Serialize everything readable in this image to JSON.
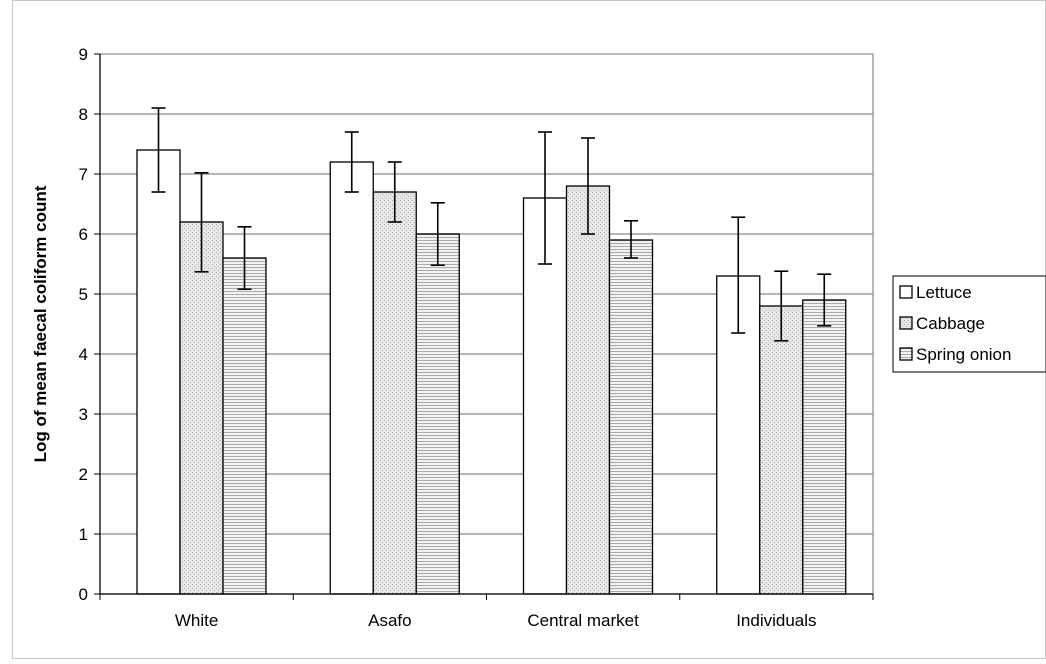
{
  "chart_data": {
    "type": "bar",
    "categories": [
      "White",
      "Asafo",
      "Central market",
      "Individuals"
    ],
    "series": [
      {
        "name": "Lettuce",
        "values": [
          7.4,
          7.2,
          6.6,
          5.3
        ],
        "error_low": [
          6.7,
          6.7,
          5.5,
          4.35
        ],
        "error_high": [
          8.1,
          7.7,
          7.7,
          6.28
        ]
      },
      {
        "name": "Cabbage",
        "values": [
          6.2,
          6.7,
          6.8,
          4.8
        ],
        "error_low": [
          5.37,
          6.2,
          6.0,
          4.22
        ],
        "error_high": [
          7.02,
          7.2,
          7.6,
          5.38
        ]
      },
      {
        "name": "Spring onion",
        "values": [
          5.6,
          6.0,
          5.9,
          4.9
        ],
        "error_low": [
          5.08,
          5.48,
          5.6,
          4.47
        ],
        "error_high": [
          6.12,
          6.52,
          6.22,
          5.33
        ]
      }
    ],
    "title": "",
    "xlabel": "",
    "ylabel": "Log of mean faecal coliform count",
    "ylim": [
      0,
      9
    ],
    "yticks": [
      "0",
      "1",
      "2",
      "3",
      "4",
      "5",
      "6",
      "7",
      "8",
      "9"
    ],
    "grid": true,
    "legend_position": "right",
    "colors": {
      "Lettuce": "#ffffff",
      "Cabbage": "#e4e4e4",
      "Spring onion": "#d6d6d6",
      "gridline": "#8a8a8a",
      "plot_border": "#8a8a8a",
      "axis": "#000000"
    }
  }
}
